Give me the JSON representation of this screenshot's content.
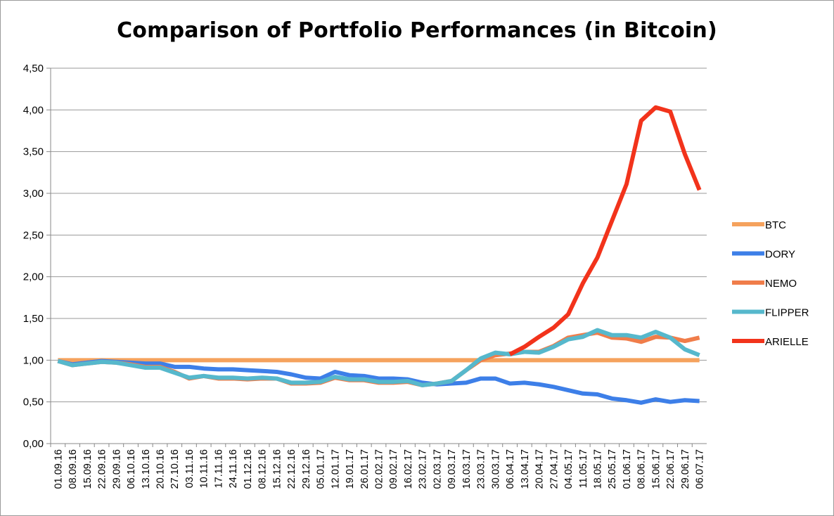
{
  "chart_data": {
    "type": "line",
    "title": "Comparison of Portfolio Performances (in Bitcoin)",
    "xlabel": "",
    "ylabel": "",
    "ylim": [
      0,
      4.5
    ],
    "yticks": [
      "0,00",
      "0,50",
      "1,00",
      "1,50",
      "2,00",
      "2,50",
      "3,00",
      "3,50",
      "4,00",
      "4,50"
    ],
    "grid": "horizontal",
    "legend_position": "right",
    "categories": [
      "01.09.16",
      "08.09.16",
      "15.09.16",
      "22.09.16",
      "29.09.16",
      "06.10.16",
      "13.10.16",
      "20.10.16",
      "27.10.16",
      "03.11.16",
      "10.11.16",
      "17.11.16",
      "24.11.16",
      "01.12.16",
      "08.12.16",
      "15.12.16",
      "22.12.16",
      "29.12.16",
      "05.01.17",
      "12.01.17",
      "19.01.17",
      "26.01.17",
      "02.02.17",
      "09.02.17",
      "16.02.17",
      "23.02.17",
      "02.03.17",
      "09.03.17",
      "16.03.17",
      "23.03.17",
      "30.03.17",
      "06.04.17",
      "13.04.17",
      "20.04.17",
      "27.04.17",
      "04.05.17",
      "11.05.17",
      "18.05.17",
      "25.05.17",
      "01.06.17",
      "08.06.17",
      "15.06.17",
      "22.06.17",
      "29.06.17",
      "06.07.17"
    ],
    "series": [
      {
        "name": "BTC",
        "color": "#f5a25d",
        "values": [
          1.0,
          1.0,
          1.0,
          1.0,
          1.0,
          1.0,
          1.0,
          1.0,
          1.0,
          1.0,
          1.0,
          1.0,
          1.0,
          1.0,
          1.0,
          1.0,
          1.0,
          1.0,
          1.0,
          1.0,
          1.0,
          1.0,
          1.0,
          1.0,
          1.0,
          1.0,
          1.0,
          1.0,
          1.0,
          1.0,
          1.0,
          1.0,
          1.0,
          1.0,
          1.0,
          1.0,
          1.0,
          1.0,
          1.0,
          1.0,
          1.0,
          1.0,
          1.0,
          1.0,
          1.0
        ]
      },
      {
        "name": "DORY",
        "color": "#3d7fe8",
        "values": [
          0.99,
          0.95,
          0.97,
          0.99,
          0.98,
          0.97,
          0.96,
          0.96,
          0.92,
          0.92,
          0.9,
          0.89,
          0.89,
          0.88,
          0.87,
          0.86,
          0.83,
          0.79,
          0.78,
          0.86,
          0.82,
          0.81,
          0.78,
          0.78,
          0.77,
          0.73,
          0.71,
          0.72,
          0.73,
          0.78,
          0.78,
          0.72,
          0.73,
          0.71,
          0.68,
          0.64,
          0.6,
          0.59,
          0.54,
          0.52,
          0.49,
          0.53,
          0.5,
          0.52,
          0.51
        ]
      },
      {
        "name": "NEMO",
        "color": "#f07d4a",
        "values": [
          0.99,
          0.94,
          0.96,
          0.98,
          0.97,
          0.95,
          0.92,
          0.92,
          0.86,
          0.78,
          0.81,
          0.78,
          0.78,
          0.77,
          0.78,
          0.78,
          0.72,
          0.72,
          0.73,
          0.79,
          0.76,
          0.76,
          0.73,
          0.73,
          0.74,
          0.7,
          0.72,
          0.75,
          0.88,
          1.0,
          1.06,
          1.08,
          1.1,
          1.1,
          1.17,
          1.27,
          1.3,
          1.33,
          1.27,
          1.26,
          1.22,
          1.28,
          1.27,
          1.23,
          1.27
        ]
      },
      {
        "name": "FLIPPER",
        "color": "#56b8cc",
        "values": [
          0.99,
          0.94,
          0.96,
          0.98,
          0.97,
          0.94,
          0.91,
          0.91,
          0.85,
          0.79,
          0.81,
          0.79,
          0.79,
          0.78,
          0.79,
          0.78,
          0.73,
          0.73,
          0.74,
          0.8,
          0.77,
          0.77,
          0.74,
          0.74,
          0.75,
          0.7,
          0.72,
          0.75,
          0.88,
          1.02,
          1.09,
          1.07,
          1.1,
          1.09,
          1.16,
          1.25,
          1.28,
          1.36,
          1.3,
          1.3,
          1.27,
          1.34,
          1.27,
          1.13,
          1.06
        ]
      },
      {
        "name": "ARIELLE",
        "color": "#f2331b",
        "values": [
          null,
          null,
          null,
          null,
          null,
          null,
          null,
          null,
          null,
          null,
          null,
          null,
          null,
          null,
          null,
          null,
          null,
          null,
          null,
          null,
          null,
          null,
          null,
          null,
          null,
          null,
          null,
          null,
          null,
          null,
          null,
          1.07,
          1.16,
          1.28,
          1.39,
          1.55,
          1.92,
          2.23,
          2.67,
          3.11,
          3.87,
          4.03,
          3.98,
          3.47,
          3.04
        ]
      }
    ]
  }
}
